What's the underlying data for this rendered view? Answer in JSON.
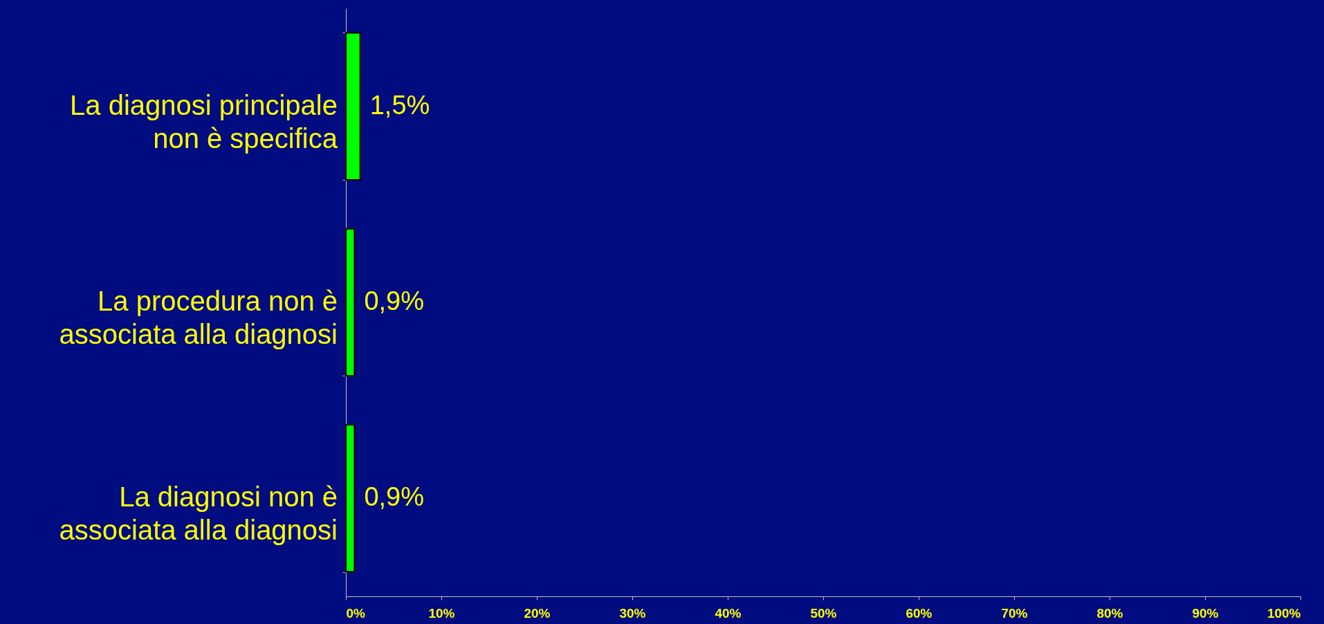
{
  "chart_data": {
    "type": "bar",
    "orientation": "horizontal",
    "categories": [
      "La diagnosi principale non è specifica",
      "La procedura non è associata alla diagnosi",
      "La diagnosi non è associata alla diagnosi"
    ],
    "values": [
      1.5,
      0.9,
      0.9
    ],
    "value_labels": [
      "1,5%",
      "0,9%",
      "0,9%"
    ],
    "color": "#00ff00",
    "xlim": [
      0,
      100
    ],
    "xticks": [
      {
        "value": 0,
        "label": "0%"
      },
      {
        "value": 10,
        "label": "10%"
      },
      {
        "value": 20,
        "label": "20%"
      },
      {
        "value": 30,
        "label": "30%"
      },
      {
        "value": 40,
        "label": "40%"
      },
      {
        "value": 50,
        "label": "50%"
      },
      {
        "value": 60,
        "label": "60%"
      },
      {
        "value": 70,
        "label": "70%"
      },
      {
        "value": 80,
        "label": "80%"
      },
      {
        "value": 90,
        "label": "90%"
      },
      {
        "value": 100,
        "label": "100%"
      }
    ],
    "grid": false
  }
}
